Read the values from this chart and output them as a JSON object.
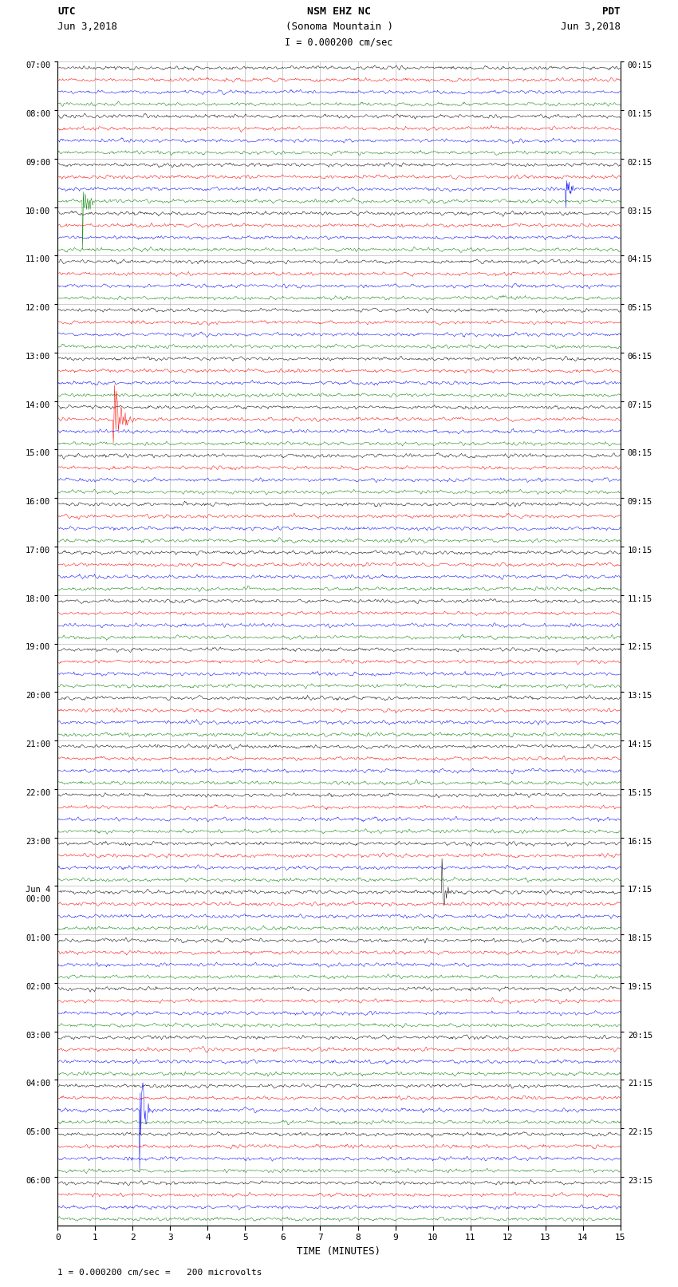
{
  "title_line1": "NSM EHZ NC",
  "title_line2": "(Sonoma Mountain )",
  "scale_label": "I = 0.000200 cm/sec",
  "left_header_top": "UTC",
  "left_header_bot": "Jun 3,2018",
  "right_header_top": "PDT",
  "right_header_bot": "Jun 3,2018",
  "xlabel": "TIME (MINUTES)",
  "footer": "1 = 0.000200 cm/sec =   200 microvolts",
  "utc_labels": [
    "07:00",
    "08:00",
    "09:00",
    "10:00",
    "11:00",
    "12:00",
    "13:00",
    "14:00",
    "15:00",
    "16:00",
    "17:00",
    "18:00",
    "19:00",
    "20:00",
    "21:00",
    "22:00",
    "23:00",
    "Jun 4\n00:00",
    "01:00",
    "02:00",
    "03:00",
    "04:00",
    "05:00",
    "06:00"
  ],
  "pdt_labels": [
    "00:15",
    "01:15",
    "02:15",
    "03:15",
    "04:15",
    "05:15",
    "06:15",
    "07:15",
    "08:15",
    "09:15",
    "10:15",
    "11:15",
    "12:15",
    "13:15",
    "14:15",
    "15:15",
    "16:15",
    "17:15",
    "18:15",
    "19:15",
    "20:15",
    "21:15",
    "22:15",
    "23:15"
  ],
  "n_hour_blocks": 24,
  "traces_per_block": 4,
  "colors": [
    "black",
    "red",
    "blue",
    "green"
  ],
  "minutes": 15,
  "samples_per_trace": 900,
  "bg_color": "white",
  "font_family": "monospace"
}
